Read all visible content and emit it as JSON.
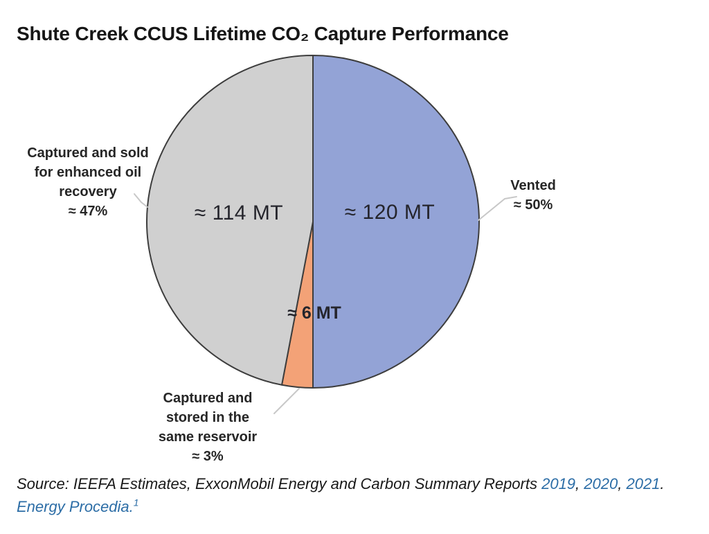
{
  "chart_data": {
    "type": "pie",
    "title": "Shute Creek CCUS Lifetime CO₂ Capture Performance",
    "start_angle_deg": 0,
    "direction": "clockwise",
    "slices": [
      {
        "key": "vented",
        "name": "Vented",
        "percent": 50,
        "percent_label": "≈ 50%",
        "amount_mt": 120,
        "amount_label": "≈ 120 MT",
        "color": "#93a3d6"
      },
      {
        "key": "stored-same-reservoir",
        "name": "Captured and stored in the same reservoir",
        "percent": 3,
        "percent_label": "≈ 3%",
        "amount_mt": 6,
        "amount_label": "≈ 6 MT",
        "color": "#f3a277"
      },
      {
        "key": "captured-sold-eor",
        "name": "Captured and sold for enhanced oil recovery",
        "percent": 47,
        "percent_label": "≈ 47%",
        "amount_mt": 114,
        "amount_label": "≈ 114 MT",
        "color": "#d0d0d0"
      }
    ],
    "stroke_color": "#3d3d3d",
    "leader_color": "#c8c8c8",
    "legend": "none",
    "units": "MT"
  },
  "callouts": {
    "eor": {
      "lines": [
        "Captured and sold",
        "for enhanced oil",
        "recovery",
        "≈ 47%"
      ]
    },
    "vented": {
      "lines": [
        "Vented",
        "≈ 50%"
      ]
    },
    "stored": {
      "lines": [
        "Captured and",
        "stored in the",
        "same reservoir",
        "≈ 3%"
      ]
    }
  },
  "source": {
    "prefix": "Source: IEEFA Estimates, ExxonMobil Energy and Carbon Summary Reports ",
    "year1": "2019",
    "sep1": ", ",
    "year2": "2020",
    "sep2": ", ",
    "year3": "2021",
    "terminator": ".",
    "journal": "Energy Procedia.",
    "footnote": "1",
    "link_color": "#2c6da6"
  }
}
